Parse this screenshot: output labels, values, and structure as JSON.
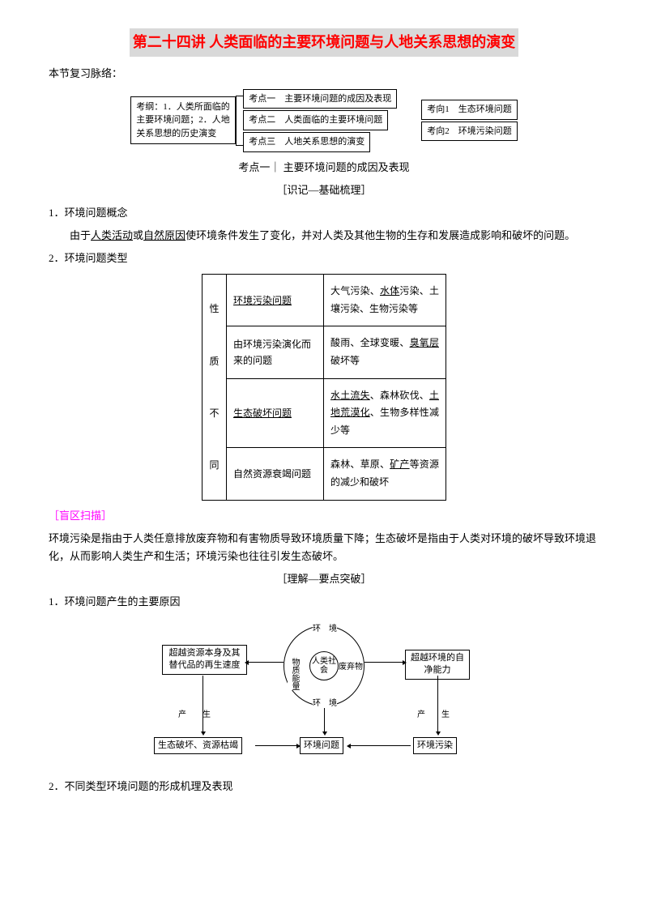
{
  "title": "第二十四讲 人类面临的主要环境问题与人地关系思想的演变",
  "intro": "本节复习脉络：",
  "d1": {
    "left": "考纲：1．人类所面临的主要环境问题；2．人地关系思想的历史演变",
    "mid": [
      "考点一　主要环境问题的成因及表现",
      "考点二　人类面临的主要环境问题",
      "考点三　人地关系思想的演变"
    ],
    "right": [
      "考向1　生态环境问题",
      "考向2　环境污染问题"
    ]
  },
  "section1_title": "考点一｜ 主要环境问题的成因及表现",
  "section1_sub": "［识记—基础梳理］",
  "item1_title": "1．环境问题概念",
  "item1_body_a": "由于",
  "item1_u1": "人类活动",
  "item1_body_b": "或",
  "item1_u2": "自然原因",
  "item1_body_c": "使环境条件发生了变化，并对人类及其他生物的生存和发展造成影响和破坏的问题。",
  "item2_title": "2．环境问题类型",
  "d2": {
    "left": [
      "性",
      "质",
      "不",
      "同"
    ],
    "rows": [
      {
        "a": "环境污染问题",
        "a_u": true,
        "b_parts": [
          "大气污染、",
          "水体",
          "污染、土壤污染、生物污染等"
        ],
        "b_u_idx": [
          1
        ]
      },
      {
        "a": "由环境污染演化而来的问题",
        "b_parts": [
          "酸雨、全球变暖、",
          "臭氧层",
          "破坏等"
        ],
        "b_u_idx": [
          1
        ]
      },
      {
        "a": "生态破坏问题",
        "a_u": true,
        "b_parts": [
          "水土流失",
          "、森林砍伐、",
          "土地荒漠化",
          "、生物多样性减少等"
        ],
        "b_u_idx": [
          0,
          2
        ]
      },
      {
        "a": "自然资源衰竭问题",
        "b_parts": [
          "森林、草原、",
          "矿产",
          "等资源的减少和破坏"
        ],
        "b_u_idx": [
          1
        ]
      }
    ]
  },
  "blind_label": "［盲区扫描］",
  "blind_text": "环境污染是指由于人类任意排放废弃物和有害物质导致环境质量下降；生态破坏是指由于人类对环境的破坏导致环境退化，从而影响人类生产和生活；环境污染也往往引发生态破坏。",
  "section2_sub": "［理解—要点突破］",
  "item3_title": "1．环境问题产生的主要原因",
  "d3": {
    "left_top": "超越资源本身及其替代品的再生速度",
    "right_top": "超越环境的自净能力",
    "center_inner": "人类社会",
    "env_top": "环　境",
    "env_bottom": "环　境",
    "substance": "物质能量",
    "waste": "废弃物",
    "produce_l": "产　　生",
    "produce_r": "产　　生",
    "bottom_left": "生态破坏、资源枯竭",
    "bottom_mid": "环境问题",
    "bottom_right": "环境污染"
  },
  "item4_title": "2．不同类型环境问题的形成机理及表现"
}
